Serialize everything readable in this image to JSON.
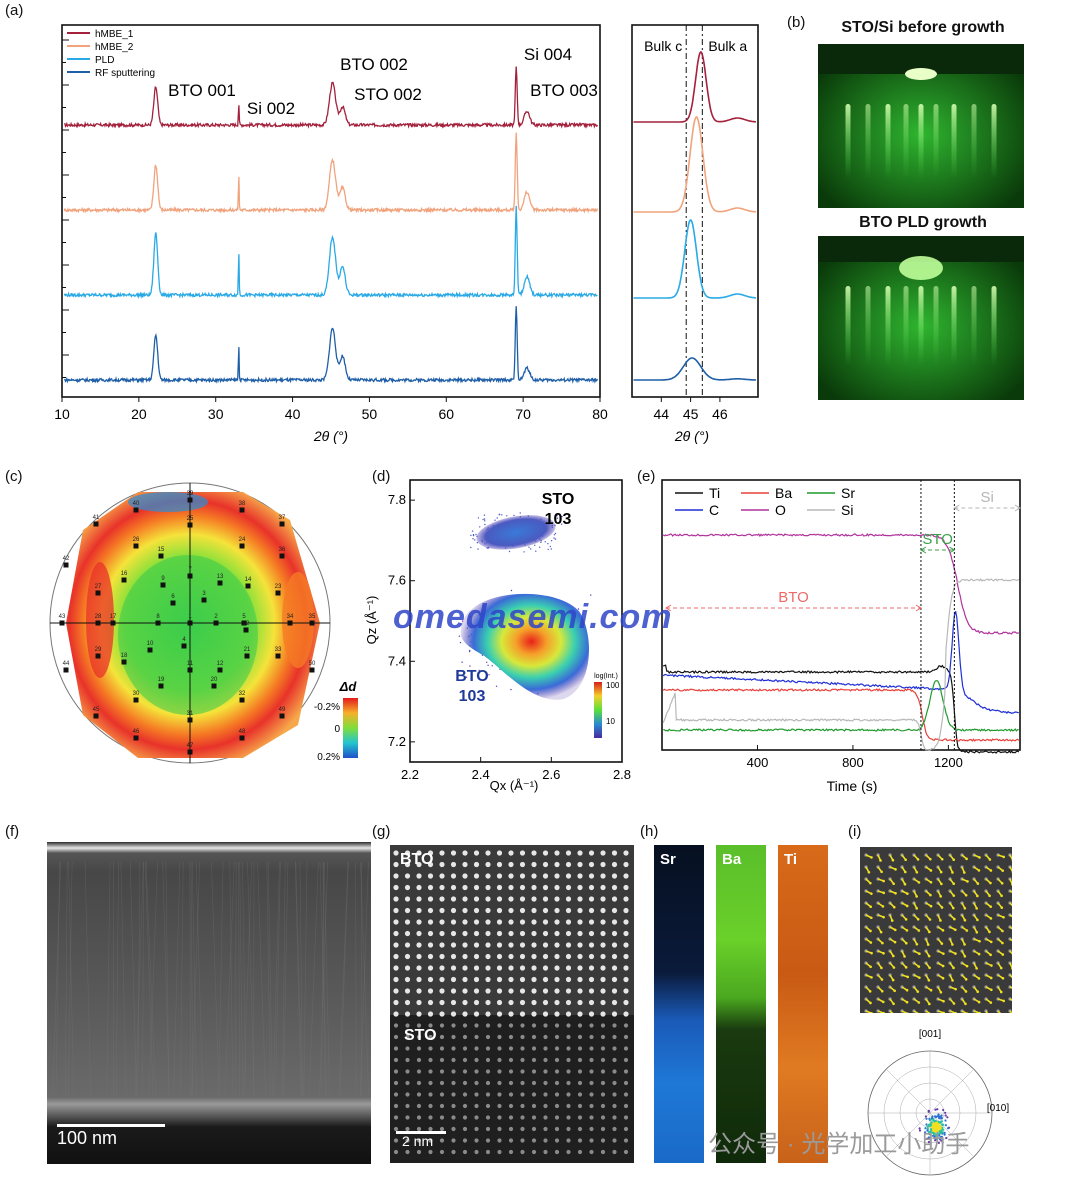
{
  "panels": {
    "a": "(a)",
    "b": "(b)",
    "c": "(c)",
    "d": "(d)",
    "e": "(e)",
    "f": "(f)",
    "g": "(g)",
    "h": "(h)",
    "i": "(i)"
  },
  "colors": {
    "hmbe1": "#a3213c",
    "hmbe2": "#f0a37c",
    "pld": "#29a9e6",
    "rf": "#1f5fa8"
  },
  "chart_data": [
    {
      "id": "a-main",
      "type": "line",
      "xlabel": "2θ (°)",
      "xlim": [
        10,
        80
      ],
      "xticks": [
        10,
        20,
        30,
        40,
        50,
        60,
        70,
        80
      ],
      "legend_placement": "top-left",
      "series": [
        {
          "name": "hMBE_1"
        },
        {
          "name": "hMBE_2"
        },
        {
          "name": "PLD"
        },
        {
          "name": "RF sputtering"
        }
      ],
      "peaks": [
        {
          "x": 22.2,
          "label": "BTO 001"
        },
        {
          "x": 33.0,
          "label": "Si 002"
        },
        {
          "x": 45.2,
          "label": "BTO 002"
        },
        {
          "x": 46.5,
          "label": "STO 002"
        },
        {
          "x": 69.1,
          "label": "Si 004"
        },
        {
          "x": 70.5,
          "label": "BTO 003"
        }
      ]
    },
    {
      "id": "a-inset",
      "type": "line",
      "xlabel": "2θ (°)",
      "xlim": [
        43,
        47.3
      ],
      "xticks": [
        44,
        45,
        46
      ],
      "reference_lines": [
        {
          "x": 44.85,
          "label": "Bulk c"
        },
        {
          "x": 45.4,
          "label": "Bulk a"
        }
      ],
      "peak_centers": [
        45.35,
        45.2,
        45.0,
        45.05
      ]
    },
    {
      "id": "d-rsm",
      "type": "scatter",
      "xlabel": "Qx (Å⁻¹)",
      "ylabel": "Qz (Å⁻¹)",
      "xlim": [
        2.2,
        2.8
      ],
      "ylim": [
        7.15,
        7.85
      ],
      "xticks": [
        2.2,
        2.4,
        2.6,
        2.8
      ],
      "yticks": [
        7.2,
        7.4,
        7.6,
        7.8
      ],
      "peaks": [
        {
          "label": "STO 103",
          "qx": 2.5,
          "qz": 7.72
        },
        {
          "label": "BTO 103",
          "qx": 2.52,
          "qz": 7.45
        }
      ],
      "colorbar": {
        "label": "log(Int.)",
        "ticks": [
          10,
          100
        ]
      }
    },
    {
      "id": "e-sims",
      "type": "line",
      "xlabel": "Time (s)",
      "xticks": [
        400,
        800,
        1200
      ],
      "xlim": [
        0,
        1500
      ],
      "legend_placement": "top-left",
      "series": [
        {
          "name": "Ti",
          "color": "#111111"
        },
        {
          "name": "Ba",
          "color": "#e8403a"
        },
        {
          "name": "Sr",
          "color": "#1f9a2c"
        },
        {
          "name": "C",
          "color": "#1f2fd6"
        },
        {
          "name": "O",
          "color": "#b0329c"
        },
        {
          "name": "Si",
          "color": "#b8b8b8"
        }
      ],
      "regions": [
        {
          "label": "BTO",
          "x_start": 0,
          "x_end": 1085,
          "color": "#ec6a6a"
        },
        {
          "label": "STO",
          "x_start": 1085,
          "x_end": 1225,
          "color": "#3aa048"
        },
        {
          "label": "Si",
          "x_start": 1225,
          "x_end": 1500,
          "color": "#b5b5b5"
        }
      ],
      "boundaries": [
        1085,
        1225
      ]
    },
    {
      "id": "c-map",
      "type": "heatmap",
      "colorbar": {
        "label": "Δd",
        "ticks": [
          "-0.2%",
          "0",
          "0.2%"
        ]
      },
      "point_labels": [
        "1",
        "2",
        "3",
        "4",
        "5",
        "6",
        "7",
        "8",
        "9",
        "10",
        "11",
        "12",
        "13",
        "14",
        "15",
        "16",
        "17",
        "18",
        "19",
        "20",
        "21",
        "22",
        "23",
        "24",
        "25",
        "26",
        "27",
        "28",
        "29",
        "30",
        "31",
        "32",
        "33",
        "34",
        "35",
        "36",
        "37",
        "38",
        "39",
        "40",
        "41",
        "42",
        "43",
        "44",
        "45",
        "46",
        "47",
        "48",
        "49",
        "50"
      ]
    }
  ],
  "labels": {
    "b_top": "STO/Si before growth",
    "b_bottom": "BTO PLD growth",
    "g_top": "BTO",
    "g_bottom": "STO",
    "h_sr": "Sr",
    "h_ba": "Ba",
    "h_ti": "Ti",
    "i_axis_001": "[001]",
    "i_axis_010": "[010]",
    "scale_f": "100 nm",
    "scale_g": "2 nm"
  },
  "watermark": "omedasemi.com",
  "wechat": "公众号 · 光学加工小助手"
}
